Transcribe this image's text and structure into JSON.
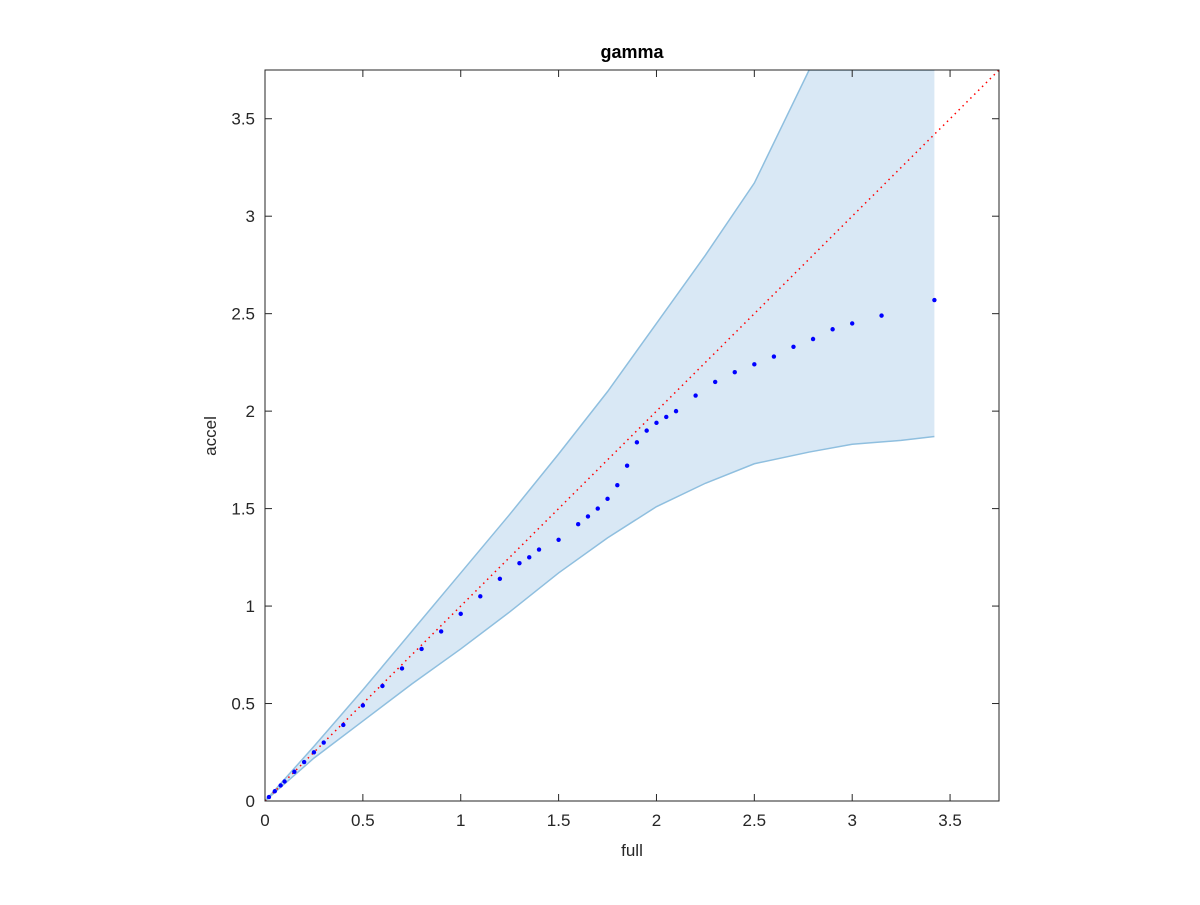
{
  "chart_data": {
    "type": "scatter",
    "title": "gamma",
    "x_label": "full",
    "y_label": "accel",
    "xlim": [
      0,
      3.75
    ],
    "ylim": [
      0,
      3.75
    ],
    "xticks": [
      0,
      0.5,
      1,
      1.5,
      2,
      2.5,
      3,
      3.5
    ],
    "yticks": [
      0,
      0.5,
      1,
      1.5,
      2,
      2.5,
      3,
      3.5
    ],
    "series": [
      {
        "color": "#0000ff",
        "x": [
          0.02,
          0.05,
          0.08,
          0.1,
          0.15,
          0.2,
          0.25,
          0.3,
          0.4,
          0.5,
          0.6,
          0.7,
          0.8,
          0.9,
          1.0,
          1.1,
          1.2,
          1.3,
          1.35,
          1.4,
          1.5,
          1.6,
          1.65,
          1.7,
          1.75,
          1.8,
          1.85,
          1.9,
          1.95,
          2.0,
          2.05,
          2.1,
          2.2,
          2.3,
          2.4,
          2.5,
          2.6,
          2.7,
          2.8,
          2.9,
          3.0,
          3.15,
          3.42
        ],
        "values": [
          0.02,
          0.05,
          0.08,
          0.1,
          0.15,
          0.2,
          0.25,
          0.3,
          0.39,
          0.49,
          0.59,
          0.68,
          0.78,
          0.87,
          0.96,
          1.05,
          1.14,
          1.22,
          1.25,
          1.29,
          1.34,
          1.42,
          1.46,
          1.5,
          1.55,
          1.62,
          1.72,
          1.84,
          1.9,
          1.94,
          1.97,
          2.0,
          2.08,
          2.15,
          2.2,
          2.24,
          2.28,
          2.33,
          2.37,
          2.42,
          2.45,
          2.49,
          2.57
        ]
      }
    ],
    "band": {
      "fill": "#d9e8f5",
      "edge": "#8fbfdf",
      "x": [
        0,
        0.25,
        0.5,
        0.75,
        1,
        1.25,
        1.5,
        1.75,
        2,
        2.25,
        2.5,
        2.78,
        3,
        3.25,
        3.42
      ],
      "upper": [
        0,
        0.28,
        0.57,
        0.87,
        1.17,
        1.47,
        1.78,
        2.1,
        2.45,
        2.8,
        3.17,
        3.75,
        3.75,
        3.75,
        3.75
      ],
      "lower": [
        0,
        0.22,
        0.41,
        0.6,
        0.78,
        0.97,
        1.17,
        1.35,
        1.51,
        1.63,
        1.73,
        1.79,
        1.83,
        1.85,
        1.87
      ]
    },
    "reference": {
      "color": "#ff0000",
      "x": [
        0,
        3.75
      ],
      "y": [
        0,
        3.75
      ]
    }
  }
}
